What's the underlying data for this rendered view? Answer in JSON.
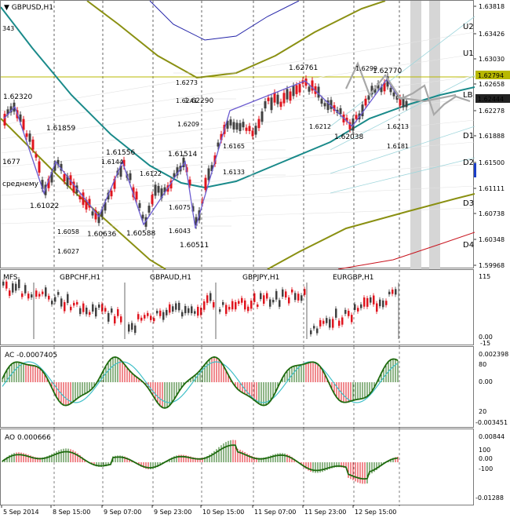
{
  "symbol": "GBPUSD,H1",
  "price_axis": {
    "ticks": [
      "1.63818",
      "1.63426",
      "1.63030",
      "1.62658",
      "1.62278",
      "1.61888",
      "1.61500",
      "1.61111",
      "1.60738",
      "1.60348",
      "1.59968"
    ],
    "current_price": "1.62444",
    "marker_price": "1.62794"
  },
  "levels": [
    "U2",
    "U1",
    "LB",
    "D1",
    "D2",
    "D3",
    "D4"
  ],
  "price_labels": {
    "swing_high": [
      "1.62320",
      "1.61859",
      "1.61556",
      "1.61514",
      "1.62290",
      "1.62761",
      "1.62770"
    ],
    "swing_low": [
      "1.61022",
      "1.60636",
      "1.60588",
      "1.60511",
      "1.62038"
    ],
    "grid_small": [
      "1.6273",
      "1.6241",
      "1.6209",
      "1.6299",
      "1.6144",
      "1.6122",
      "1.6075",
      "1.6043",
      "1.6058",
      "1.6027",
      "1.6165",
      "1.6133",
      "1.6212",
      "1.6213",
      "1.6181"
    ],
    "left_edge": [
      "343",
      "1677",
      "среднему"
    ]
  },
  "spread_panel": {
    "indicator": "MFS",
    "pairs": [
      "GBPCHF,H1",
      "GBPAUD,H1",
      "GBPJPY,H1",
      "EURGBP,H1"
    ],
    "scale": [
      "115",
      "0.00",
      "-15"
    ]
  },
  "ac_panel": {
    "label": "AC -0.0007405",
    "scale": [
      "0.002398",
      "80",
      "0.00",
      "20",
      "-0.003451"
    ]
  },
  "ao_panel": {
    "label": "AO 0.000666",
    "scale": [
      "0.00844",
      "100",
      "0.00",
      "-100",
      "-0.01288"
    ]
  },
  "time_axis": [
    "5 Sep 2014",
    "8 Sep 15:00",
    "9 Sep 07:00",
    "9 Sep 23:00",
    "10 Sep 15:00",
    "11 Sep 07:00",
    "11 Sep 23:00",
    "12 Sep 15:00"
  ],
  "colors": {
    "bull": "#404040",
    "bear": "#e0141e",
    "zigzag": "#6b5bd0",
    "ma_teal": "#1a8a8a",
    "envelope_olive": "#8a9012",
    "envelope_blue": "#2323a8",
    "oscillator_green": "#1f6b0f",
    "oscillator_cyan": "#40c0c8",
    "price_marker": "#b8b800",
    "current_marker": "#222222"
  }
}
